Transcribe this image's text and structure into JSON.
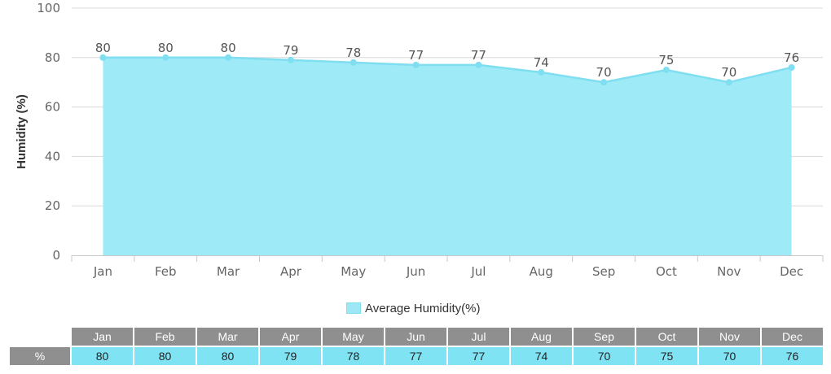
{
  "chart_data": {
    "type": "area",
    "categories": [
      "Jan",
      "Feb",
      "Mar",
      "Apr",
      "May",
      "Jun",
      "Jul",
      "Aug",
      "Sep",
      "Oct",
      "Nov",
      "Dec"
    ],
    "series": [
      {
        "name": "Average Humidity(%)",
        "values": [
          80,
          80,
          80,
          79,
          78,
          77,
          77,
          74,
          70,
          75,
          70,
          76
        ]
      }
    ],
    "ylabel": "Humidity (%)",
    "xlabel": "",
    "ylim": [
      0,
      100
    ],
    "yticks": [
      0,
      20,
      40,
      60,
      80,
      100
    ],
    "grid": true,
    "legend_position": "bottom-center",
    "colors": {
      "fill": "#9eebf7",
      "line": "#7fdef0",
      "marker": "#7fdef0"
    }
  },
  "table": {
    "row_label": "%"
  }
}
